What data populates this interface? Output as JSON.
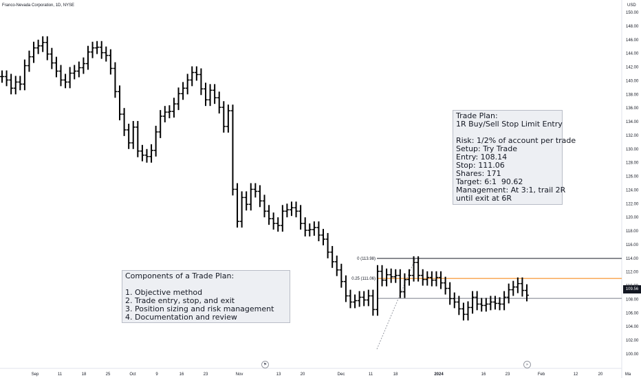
{
  "header": {
    "title": "Franco-Nevada Corporation, 1D, NYSE",
    "currency": "USD"
  },
  "price_badge": "109.56",
  "trade_plan": {
    "lines": [
      "Trade Plan:",
      "1R Buy/Sell Stop Limit Entry",
      "",
      "Risk: 1/2% of account per trade",
      "Setup: Try Trade",
      "Entry: 108.14",
      "Stop: 111.06",
      "Shares: 171",
      "Target: 6:1  90.62",
      "Management: At 3:1, trail 2R",
      "until exit at 6R"
    ]
  },
  "components": {
    "lines": [
      "Components of a Trade Plan:",
      "",
      "1. Objective method",
      "2. Trade entry, stop, and exit",
      "3. Position sizing and risk management",
      "4. Documentation and review"
    ]
  },
  "icons": {
    "left_nav": "flag-icon",
    "right_nav": "forward-icon"
  },
  "colors": {
    "fib_zero": "#131722",
    "fib_025": "#f57c00",
    "fib_base": "#787b86",
    "bars": "#000000"
  },
  "chart_data": {
    "type": "ohlc",
    "title": "Franco-Nevada Corporation, 1D, NYSE",
    "ylim": [
      100,
      150
    ],
    "y_ticks": [
      "100.00",
      "102.00",
      "104.00",
      "106.00",
      "108.00",
      "110.00",
      "112.00",
      "114.00",
      "116.00",
      "118.00",
      "120.00",
      "122.00",
      "124.00",
      "126.00",
      "128.00",
      "130.00",
      "132.00",
      "134.00",
      "136.00",
      "138.00",
      "140.00",
      "142.00",
      "144.00",
      "146.00",
      "148.00",
      "150.00"
    ],
    "x_ticks": [
      "Sep",
      "11",
      "18",
      "25",
      "Oct",
      "9",
      "16",
      "23",
      "Nov",
      "13",
      "20",
      "Dec",
      "11",
      "18",
      "2024",
      "16",
      "23",
      "Feb",
      "12",
      "20",
      "Ma"
    ],
    "series": [
      {
        "values": [
          140.6,
          140.1,
          138.9,
          139.8,
          139.5,
          142.2,
          143.5,
          144.8,
          145.1,
          145.6,
          143.9,
          142.6,
          141.4,
          140.1,
          139.8,
          141.1,
          141.4,
          141.9,
          142.5,
          144.2,
          144.8,
          144.9,
          144.1,
          143.7,
          141.8,
          138.4,
          135.1,
          132.8,
          130.9,
          133.2,
          129.7,
          129.1,
          128.9,
          129.8,
          132.5,
          134.8,
          135.4,
          135.5,
          136.6,
          138.1,
          138.9,
          140.1,
          141.2,
          140.9,
          138.8,
          137.2,
          138.6,
          137.5,
          136.1,
          133.3,
          135.6,
          124.1,
          119.4,
          122.9,
          121.9,
          124.1,
          123.8,
          122.4,
          120.9,
          119.8,
          119.1,
          118.8,
          120.9,
          121.1,
          121.4,
          120.9,
          119.1,
          118.1,
          118.2,
          118.5,
          117.4,
          116.8,
          114.9,
          113.5,
          112.3,
          110.6,
          108.5,
          107.6,
          107.8,
          108.3,
          107.9,
          108.5,
          106.5,
          112.1,
          110.8,
          111.6,
          111.3,
          111.5,
          109.1,
          110.9,
          111.5,
          113.4,
          111.5,
          110.9,
          111.2,
          110.8,
          111.2,
          110.4,
          109.6,
          108.1,
          107.6,
          106.6,
          105.8,
          106.8,
          108.3,
          107.3,
          107.1,
          107.3,
          107.6,
          107.4,
          107.3,
          108.3,
          109.4,
          109.8,
          110.3,
          109.3,
          108.6
        ],
        "last": 109.56
      }
    ],
    "annotations": [
      {
        "label": "0 (113.98)",
        "value": 113.98,
        "color": "#131722"
      },
      {
        "label": "0.25 (111.06)",
        "value": 111.06,
        "color": "#f57c00"
      },
      {
        "label": "",
        "value": 108.14,
        "color": "#787b86"
      }
    ]
  }
}
